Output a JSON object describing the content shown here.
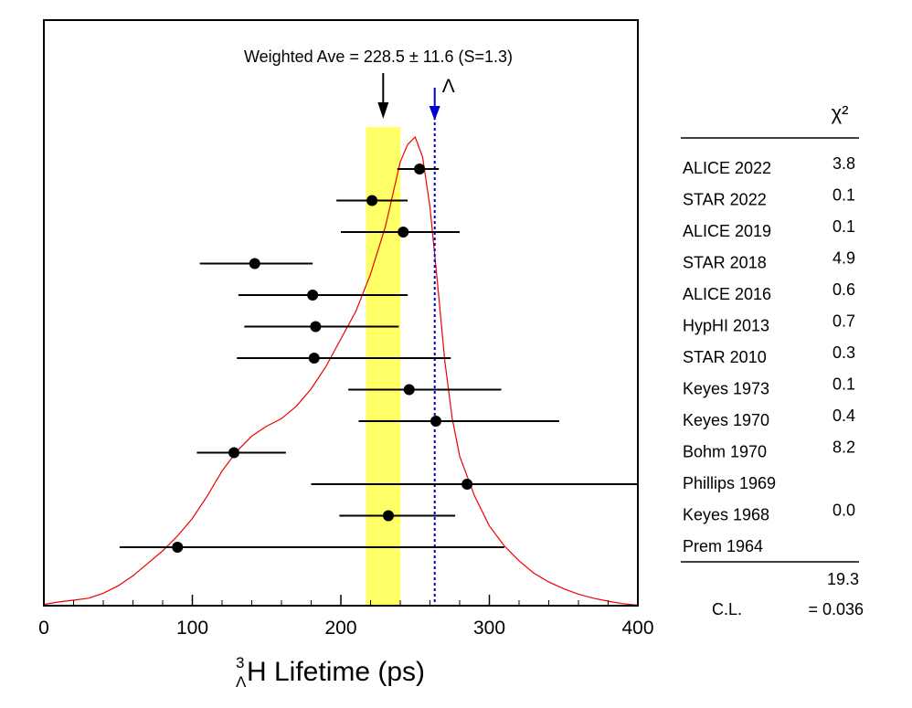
{
  "chart_data": {
    "type": "scatter",
    "title": "",
    "xlabel": {
      "prefix_sup": "3",
      "prefix_sub": "Λ",
      "text": "H Lifetime (ps)"
    },
    "ylabel": "",
    "xlim": [
      0,
      400
    ],
    "x_ticks": [
      0,
      100,
      200,
      300,
      400
    ],
    "grid": false,
    "weighted_average": {
      "label": "Weighted Ave = 228.5 ± 11.6 (S=1.3)",
      "value": 228.5,
      "error": 11.6,
      "band": [
        216.9,
        240.1
      ],
      "band_color": "#ffff66"
    },
    "lambda_lifetime": {
      "label": "Λ",
      "value": 263.2,
      "color": "#0000cc"
    },
    "ideogram_color": "#ee0000",
    "ideogram_curve": [
      [
        0,
        0.005
      ],
      [
        10,
        0.015
      ],
      [
        20,
        0.022
      ],
      [
        30,
        0.03
      ],
      [
        40,
        0.05
      ],
      [
        50,
        0.08
      ],
      [
        60,
        0.12
      ],
      [
        70,
        0.17
      ],
      [
        80,
        0.22
      ],
      [
        90,
        0.28
      ],
      [
        100,
        0.35
      ],
      [
        110,
        0.44
      ],
      [
        120,
        0.54
      ],
      [
        130,
        0.62
      ],
      [
        140,
        0.68
      ],
      [
        150,
        0.72
      ],
      [
        160,
        0.75
      ],
      [
        170,
        0.8
      ],
      [
        180,
        0.87
      ],
      [
        190,
        0.96
      ],
      [
        200,
        1.07
      ],
      [
        210,
        1.18
      ],
      [
        220,
        1.33
      ],
      [
        230,
        1.52
      ],
      [
        240,
        1.78
      ],
      [
        245,
        1.85
      ],
      [
        250,
        1.88
      ],
      [
        255,
        1.8
      ],
      [
        260,
        1.6
      ],
      [
        265,
        1.3
      ],
      [
        270,
        0.98
      ],
      [
        275,
        0.75
      ],
      [
        280,
        0.6
      ],
      [
        290,
        0.44
      ],
      [
        300,
        0.32
      ],
      [
        310,
        0.24
      ],
      [
        320,
        0.18
      ],
      [
        330,
        0.13
      ],
      [
        340,
        0.095
      ],
      [
        350,
        0.068
      ],
      [
        360,
        0.046
      ],
      [
        370,
        0.03
      ],
      [
        380,
        0.018
      ],
      [
        390,
        0.008
      ],
      [
        400,
        0.002
      ]
    ],
    "ymax_curve": 2.0,
    "chi2_header": "χ²",
    "measurements": [
      {
        "name": "ALICE 2022",
        "value": 253,
        "low": 238,
        "high": 266,
        "chi2": "3.8"
      },
      {
        "name": "STAR 2022",
        "value": 221,
        "low": 197,
        "high": 245,
        "chi2": "0.1"
      },
      {
        "name": "ALICE 2019",
        "value": 242,
        "low": 200,
        "high": 280,
        "chi2": "0.1"
      },
      {
        "name": "STAR 2018",
        "value": 142,
        "low": 105,
        "high": 181,
        "chi2": "4.9"
      },
      {
        "name": "ALICE 2016",
        "value": 181,
        "low": 131,
        "high": 245,
        "chi2": "0.6"
      },
      {
        "name": "HypHI 2013",
        "value": 183,
        "low": 135,
        "high": 239,
        "chi2": "0.7"
      },
      {
        "name": "STAR 2010",
        "value": 182,
        "low": 130,
        "high": 274,
        "chi2": "0.3"
      },
      {
        "name": "Keyes 1973",
        "value": 246,
        "low": 205,
        "high": 308,
        "chi2": "0.1"
      },
      {
        "name": "Keyes 1970",
        "value": 264,
        "low": 212,
        "high": 347,
        "chi2": "0.4"
      },
      {
        "name": "Bohm 1970",
        "value": 128,
        "low": 103,
        "high": 163,
        "chi2": "8.2"
      },
      {
        "name": "Phillips 1969",
        "value": 285,
        "low": 180,
        "high": 400,
        "chi2": ""
      },
      {
        "name": "Keyes 1968",
        "value": 232,
        "low": 199,
        "high": 277,
        "chi2": "0.0"
      },
      {
        "name": "Prem 1964",
        "value": 90,
        "low": 51,
        "high": 310,
        "chi2": ""
      }
    ],
    "chi2_total": "19.3",
    "cl_label": "C.L.",
    "cl_value": "= 0.036"
  }
}
